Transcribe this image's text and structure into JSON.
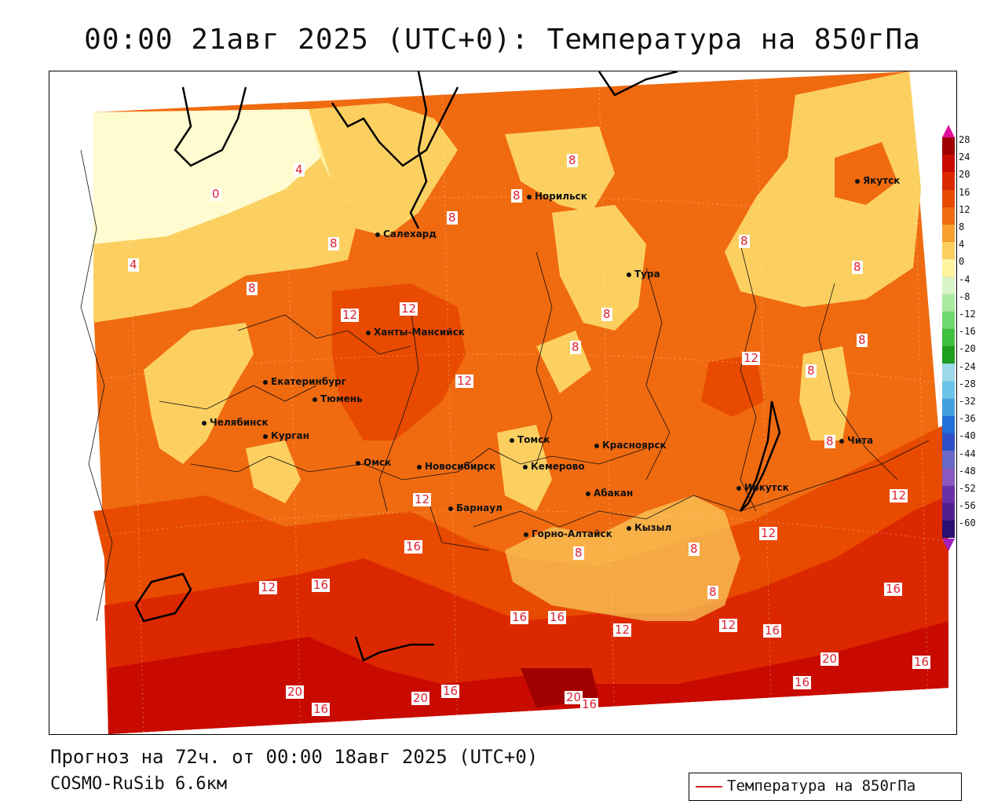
{
  "title": "00:00 21авг 2025 (UTC+0): Температура на 850гПа",
  "footer": {
    "forecast": "Прогноз на 72ч. от 00:00 18авг 2025 (UTC+0)",
    "model": "COSMO-RuSib 6.6км"
  },
  "legend": {
    "label": "Температура на 850гПа",
    "color": "#e02020"
  },
  "colorbar": {
    "labels": [
      "28",
      "24",
      "20",
      "16",
      "12",
      "8",
      "4",
      "0",
      "-4",
      "-8",
      "-12",
      "-16",
      "-20",
      "-24",
      "-28",
      "-32",
      "-36",
      "-40",
      "-44",
      "-48",
      "-52",
      "-56",
      "-60"
    ],
    "colors": [
      "#a00000",
      "#c80a00",
      "#dc2800",
      "#e84a00",
      "#f06a10",
      "#f7a030",
      "#fbd060",
      "#fff3a0",
      "#d8f5c8",
      "#a8eba0",
      "#70d870",
      "#40c040",
      "#1e9e1e",
      "#9bd8ea",
      "#6ac4e8",
      "#40a0e0",
      "#2070d8",
      "#3050c8",
      "#6a68c8",
      "#8a58c0",
      "#6a30a8",
      "#502090",
      "#2a1070"
    ],
    "top_color": "#e0109a",
    "bottom_color": "#a020c0"
  },
  "cities": [
    {
      "name": "Норильск"
    },
    {
      "name": "Якутск"
    },
    {
      "name": "Салехард"
    },
    {
      "name": "Тура"
    },
    {
      "name": "Ханты-Мансийск"
    },
    {
      "name": "Екатеринбург"
    },
    {
      "name": "Тюмень"
    },
    {
      "name": "Челябинск"
    },
    {
      "name": "Курган"
    },
    {
      "name": "Томск"
    },
    {
      "name": "Красноярск"
    },
    {
      "name": "Омск"
    },
    {
      "name": "Новосибирск"
    },
    {
      "name": "Кемерово"
    },
    {
      "name": "Абакан"
    },
    {
      "name": "Иркутск"
    },
    {
      "name": "Чита"
    },
    {
      "name": "Барнаул"
    },
    {
      "name": "Кызыл"
    },
    {
      "name": "Горно-Алтайск"
    }
  ],
  "isotherm_labels": [
    "8",
    "8",
    "8",
    "4",
    "0",
    "8",
    "4",
    "8",
    "12",
    "12",
    "12",
    "8",
    "8",
    "8",
    "8",
    "12",
    "8",
    "8",
    "12",
    "8",
    "12",
    "16",
    "12",
    "16",
    "12",
    "16",
    "8",
    "8",
    "8",
    "16",
    "12",
    "12",
    "16",
    "16",
    "20",
    "20",
    "16",
    "20",
    "16",
    "16",
    "20",
    "16",
    "16"
  ]
}
